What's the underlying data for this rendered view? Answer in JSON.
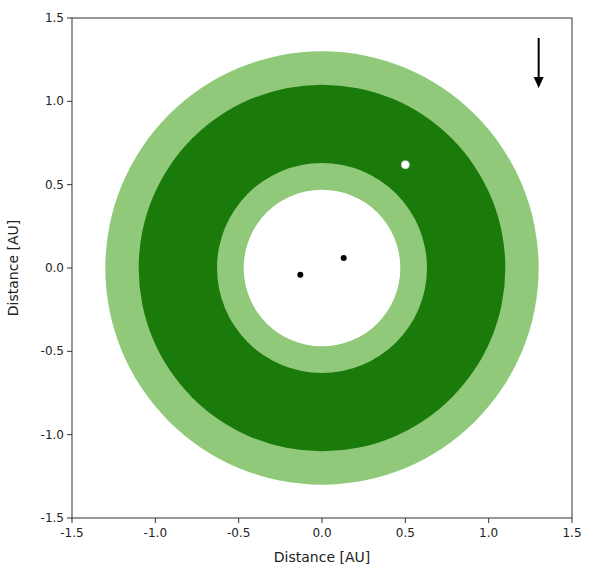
{
  "chart_data": {
    "type": "orbit",
    "xlabel": "Distance [AU]",
    "ylabel": "Distance [AU]",
    "xlim": [
      -1.5,
      1.5
    ],
    "ylim": [
      -1.5,
      1.5
    ],
    "xticks": [
      -1.5,
      {
        "value": -1.0,
        "label": "-1.0"
      },
      -0.5,
      {
        "value": 0.0,
        "label": "0.0"
      },
      0.5,
      {
        "value": 1.0,
        "label": "1.0"
      },
      1.5
    ],
    "yticks": [
      -1.5,
      {
        "value": -1.0,
        "label": "-1.0"
      },
      -0.5,
      {
        "value": 0.0,
        "label": "0.0"
      },
      0.5,
      {
        "value": 1.0,
        "label": "1.0"
      },
      1.5
    ],
    "zones": [
      {
        "r": 1.3,
        "color": "#90c97a"
      },
      {
        "r": 1.1,
        "color": "#1a7a0a"
      },
      {
        "r": 0.63,
        "color": "#90c97a"
      },
      {
        "r": 0.47,
        "color": "white"
      }
    ],
    "stars": [
      {
        "x": -0.13,
        "y": -0.04,
        "color": "black"
      },
      {
        "x": 0.13,
        "y": 0.06,
        "color": "black"
      }
    ],
    "planet": {
      "x": 0.5,
      "y": 0.62,
      "color": "white"
    },
    "arrow": {
      "x": 1.3,
      "y_start": 1.38,
      "y_end": 1.08,
      "color": "black"
    }
  }
}
